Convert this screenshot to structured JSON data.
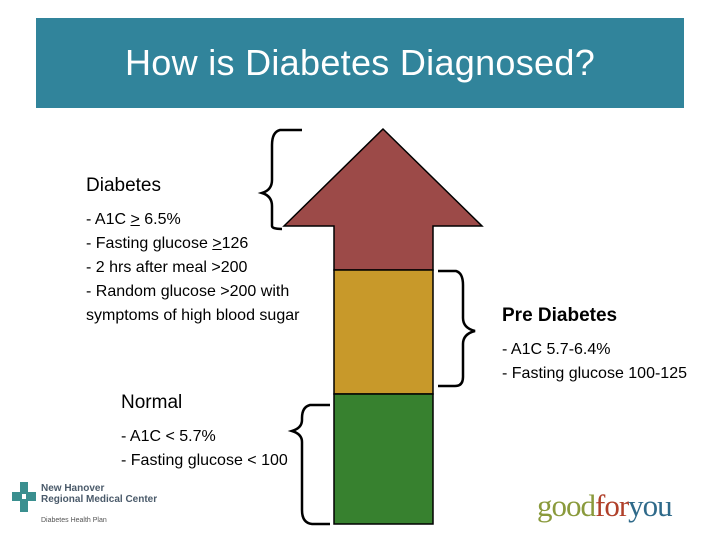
{
  "title": "How is Diabetes Diagnosed?",
  "colors": {
    "title_bar": "#31849b",
    "diabetes": "#9c4a48",
    "prediabetes": "#c8992a",
    "normal": "#37812f"
  },
  "diabetes": {
    "heading": "Diabetes",
    "line1_prefix": "- A1C ",
    "line1_u": ">",
    "line1_suffix": " 6.5%",
    "line2_prefix": "- Fasting glucose ",
    "line2_u": ">",
    "line2_suffix": "126",
    "line3": "- 2 hrs after meal >200",
    "line4": "- Random glucose >200 with",
    "line5": "symptoms of high blood sugar"
  },
  "prediabetes": {
    "heading": "Pre Diabetes",
    "line1": "- A1C 5.7-6.4%",
    "line2": "- Fasting glucose 100-125"
  },
  "normal": {
    "heading": "Normal",
    "line1": "- A1C < 5.7%",
    "line2": "- Fasting glucose < 100"
  },
  "logos": {
    "new_hanover_line1": "New Hanover",
    "new_hanover_line2": "Regional Medical Center",
    "new_hanover_sub": "Diabetes Health Plan",
    "goodforyou_part1": "good",
    "goodforyou_part2": "for",
    "goodforyou_part3": "you"
  }
}
